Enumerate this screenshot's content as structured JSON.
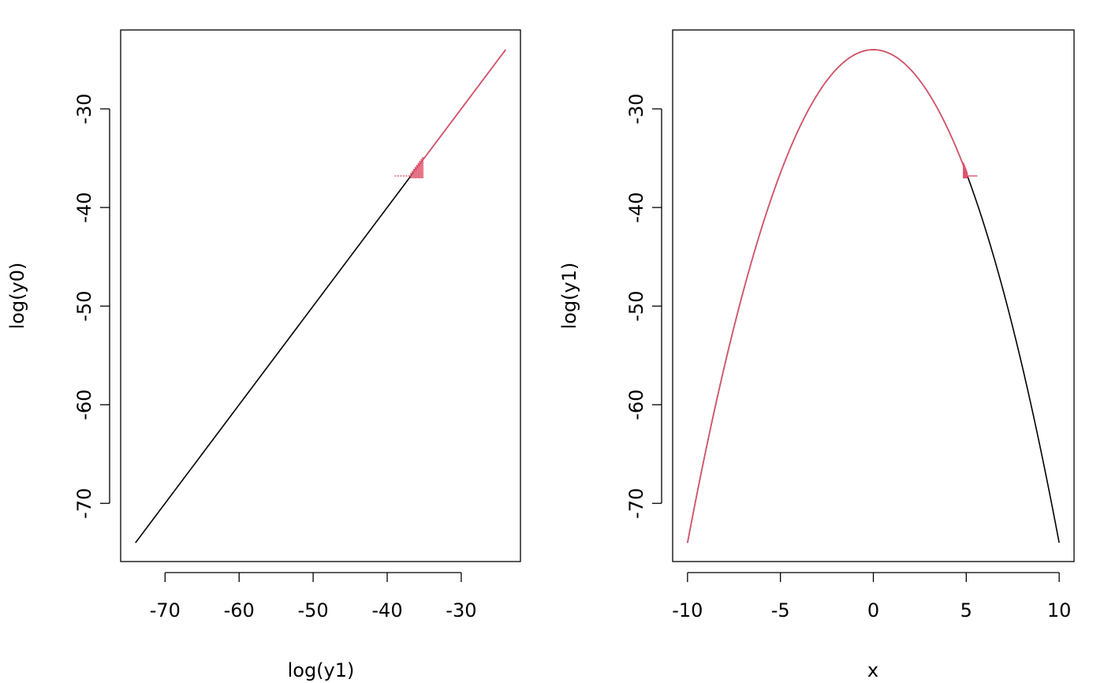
{
  "chart_data": [
    {
      "type": "line",
      "xlabel": "log(y1)",
      "ylabel": "log(y0)",
      "xlim": [
        -76,
        -22
      ],
      "ylim": [
        -75.9,
        -22
      ],
      "xticks": [
        -70,
        -60,
        -50,
        -40,
        -30
      ],
      "yticks": [
        -70,
        -60,
        -50,
        -40,
        -30
      ],
      "grid": false,
      "series": [
        {
          "color": "#000000",
          "kind": "segment",
          "x": [
            -74,
            -24
          ],
          "y": [
            -74,
            -24
          ]
        },
        {
          "color": "#DF536B",
          "kind": "segment",
          "x": [
            -36.5,
            -24
          ],
          "y": [
            -36.5,
            -24
          ],
          "flat_x": [
            -39,
            -36.5
          ],
          "flat_y": -36.8
        }
      ]
    },
    {
      "type": "line",
      "xlabel": "x",
      "ylabel": "log(y1)",
      "xlim": [
        -10.8,
        10.8
      ],
      "ylim": [
        -75.9,
        -22
      ],
      "xticks": [
        -10,
        -5,
        0,
        5,
        10
      ],
      "yticks": [
        -70,
        -60,
        -50,
        -40,
        -30
      ],
      "grid": false,
      "series": [
        {
          "color": "#000000",
          "kind": "curve",
          "formula": "-24 - x^2/2",
          "x_range": [
            -10,
            10
          ]
        },
        {
          "color": "#DF536B",
          "kind": "curve",
          "formula": "-24 - x^2/2",
          "x_range": [
            -10,
            5
          ],
          "flat_x": [
            5,
            5.6
          ],
          "flat_y": -36.8
        }
      ]
    }
  ]
}
